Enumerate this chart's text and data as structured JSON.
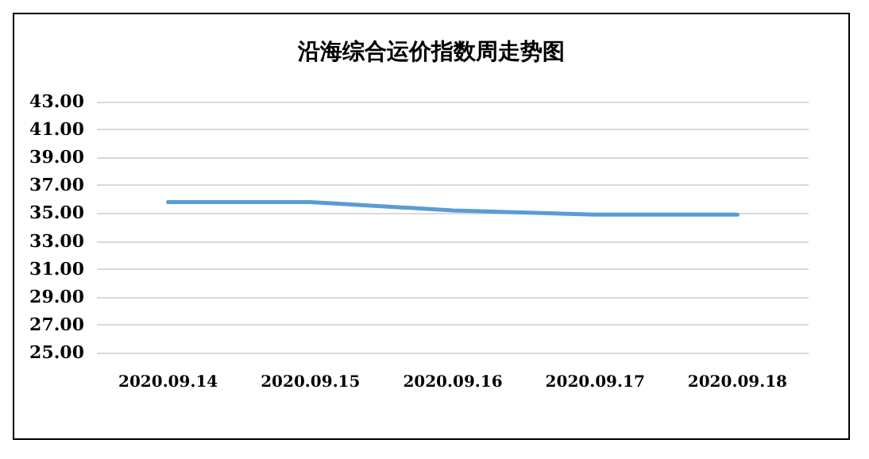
{
  "chart_data": {
    "type": "line",
    "title": "沿海综合运价指数周走势图",
    "categories": [
      "2020.09.14",
      "2020.09.15",
      "2020.09.16",
      "2020.09.17",
      "2020.09.18"
    ],
    "series": [
      {
        "color": "#5b9bd5",
        "values": [
          35.8,
          35.8,
          35.2,
          34.9,
          34.9
        ]
      }
    ],
    "ylim": [
      25,
      43
    ],
    "yticks": [
      {
        "value": 25,
        "label": "25.00"
      },
      {
        "value": 27,
        "label": "27.00"
      },
      {
        "value": 29,
        "label": "29.00"
      },
      {
        "value": 31,
        "label": "31.00"
      },
      {
        "value": 33,
        "label": "33.00"
      },
      {
        "value": 35,
        "label": "35.00"
      },
      {
        "value": 37,
        "label": "37.00"
      },
      {
        "value": 39,
        "label": "39.00"
      },
      {
        "value": 41,
        "label": "41.00"
      },
      {
        "value": 43,
        "label": "43.00"
      }
    ],
    "grid": "y",
    "marker": "none",
    "line_style": "solid"
  }
}
